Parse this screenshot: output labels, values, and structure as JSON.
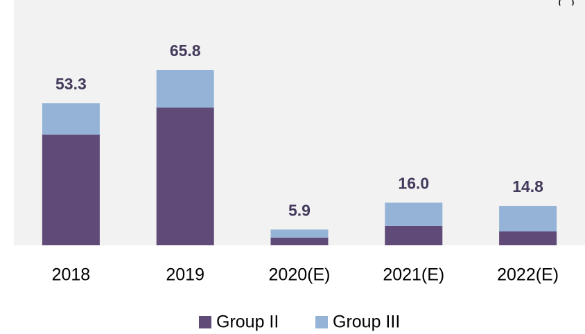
{
  "chart_data": {
    "type": "stacked_bar",
    "categories": [
      "2018",
      "2019",
      "2020(E)",
      "2021(E)",
      "2022(E)"
    ],
    "series": [
      {
        "name": "Group II",
        "color": "#5f4a78",
        "values": [
          41.5,
          51.7,
          2.9,
          7.3,
          5.2
        ]
      },
      {
        "name": "Group III",
        "color": "#95b3d7",
        "values": [
          11.8,
          14.1,
          3.0,
          8.7,
          9.6
        ]
      }
    ],
    "totals": [
      53.3,
      65.8,
      5.9,
      16.0,
      14.8
    ],
    "total_labels": [
      "53.3",
      "65.8",
      "5.9",
      "16.0",
      "14.8"
    ],
    "legend": "bottom"
  }
}
